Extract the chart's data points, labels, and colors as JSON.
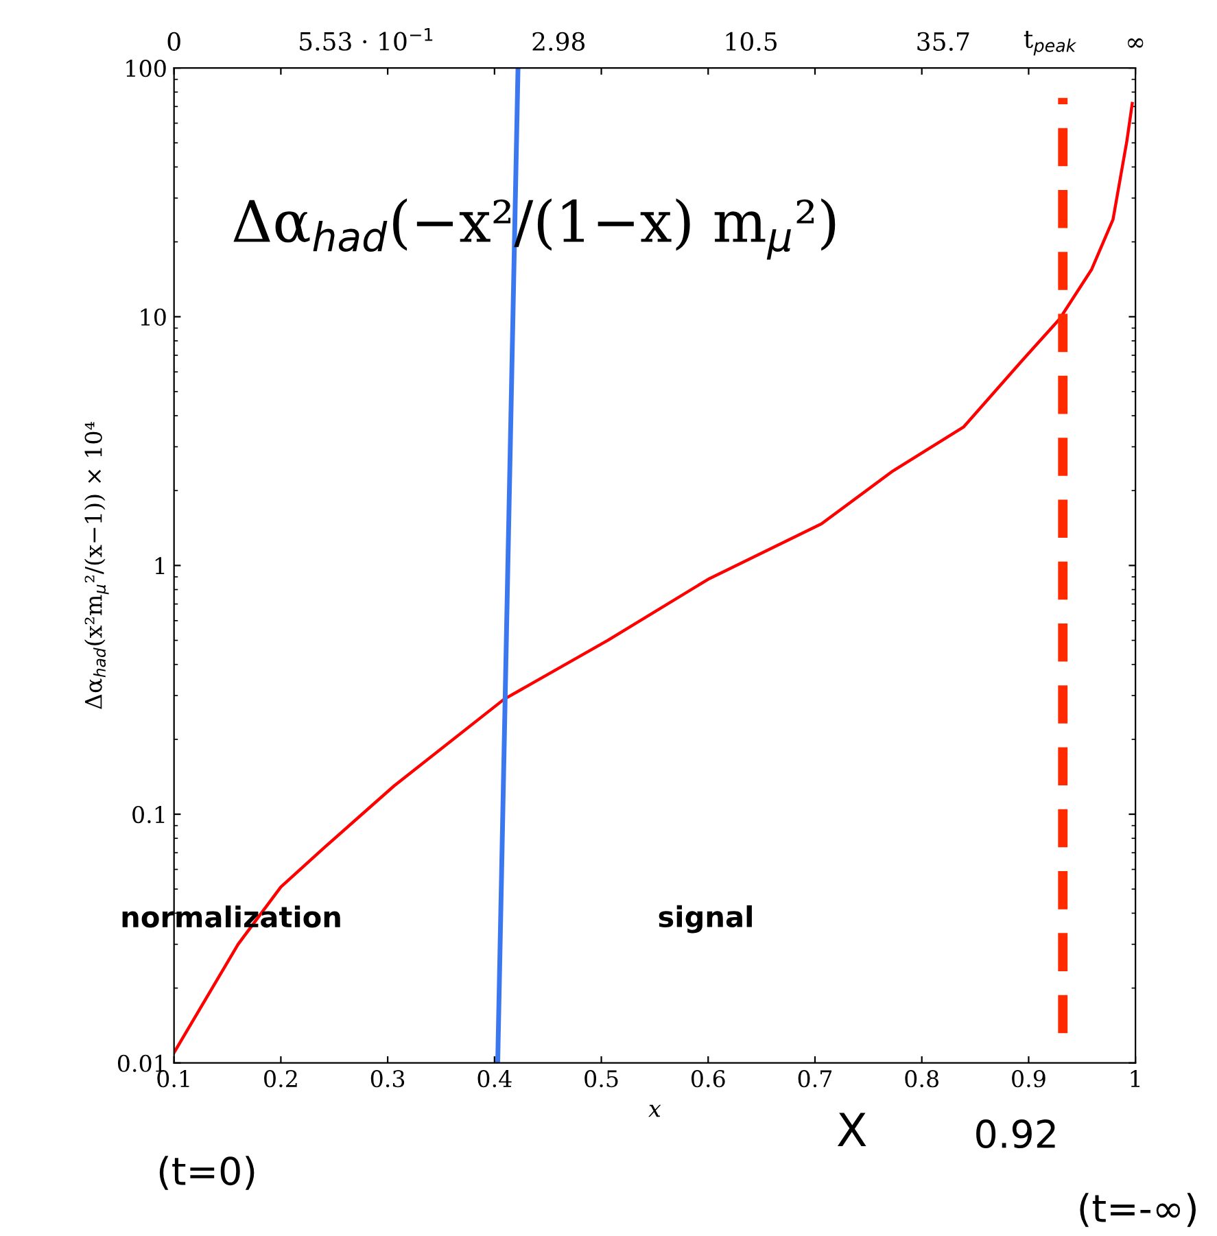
{
  "chart_data": {
    "type": "line",
    "xlabel": "x",
    "ylabel": "Δα$_{had}$(x²m$_{μ}$²/(x−1)) × 10⁴",
    "x": [
      0.1,
      0.16,
      0.2,
      0.24,
      0.306,
      0.409,
      0.506,
      0.6,
      0.706,
      0.773,
      0.839,
      0.893,
      0.929,
      0.959,
      0.979,
      0.992,
      0.997
    ],
    "series": [
      {
        "color": "#ff0000",
        "values": [
          0.011,
          0.03,
          0.051,
          0.073,
          0.13,
          0.29,
          0.5,
          0.88,
          1.47,
          2.4,
          3.6,
          6.6,
          9.8,
          15.5,
          24.6,
          51,
          72
        ]
      },
      {
        "color": "#3b78f0",
        "x": [
          0.403,
          0.422
        ],
        "values": [
          0.01,
          100
        ]
      }
    ],
    "log": "y",
    "xlim": [
      0.1,
      1
    ],
    "xticks": [
      0.1,
      0.2,
      0.3,
      0.4,
      0.5,
      0.6,
      0.7,
      0.8,
      0.9,
      1
    ],
    "ylim": [
      0.01,
      100
    ],
    "yticks": [
      0.01,
      0.1,
      1,
      10,
      100
    ],
    "ref_lines": [
      {
        "axis": "x",
        "value": 0.932,
        "color": "#ff2a00",
        "line_style": "dashed"
      }
    ],
    "annotations": [
      "Δα$_{had}$(−x²/(1−x) m$_{μ}$²)",
      "normalization",
      "signal",
      "X",
      "0.92",
      "(t=0)",
      "(t=-∞)",
      "0",
      "5.53 · 10$^{−1}$",
      "2.98",
      "10.5",
      "35.7",
      "t$_{peak}$",
      "∞"
    ],
    "grid": false,
    "legend": false,
    "marker": "none",
    "line_style": "solid"
  }
}
